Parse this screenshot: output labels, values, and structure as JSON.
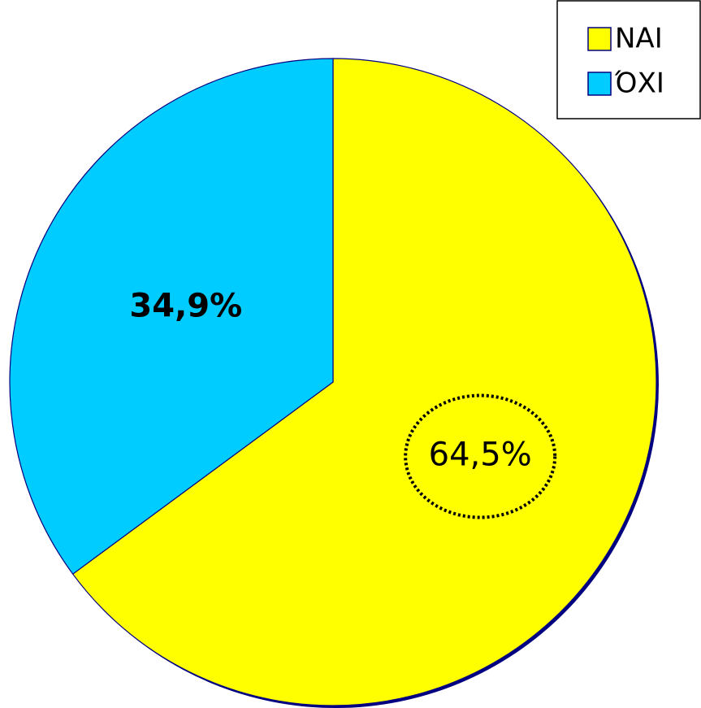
{
  "chart_data": {
    "type": "pie",
    "categories": [
      "NAI",
      "ΌΧΙ"
    ],
    "values": [
      64.5,
      34.9
    ],
    "value_labels": [
      "64,5%",
      "34,9%"
    ],
    "colors": [
      "#ffff00",
      "#00ccff"
    ],
    "legend": "top-right"
  }
}
